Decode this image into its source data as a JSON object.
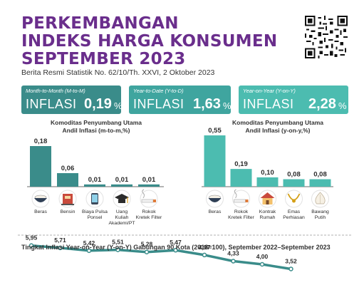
{
  "header": {
    "title_lines": [
      "PERKEMBANGAN",
      "INDEKS HARGA KONSUMEN",
      "SEPTEMBER 2023"
    ],
    "subtitle": "Berita Resmi Statistik No. 62/10/Th. XXVI, 2 Oktober 2023"
  },
  "inflation_boxes": [
    {
      "label": "Month-to-Month (M-to-M)",
      "word": "INFLASI",
      "value": "0,19",
      "unit": "%",
      "color": "#3a8c8a"
    },
    {
      "label": "Year-to-Date (Y-to-D)",
      "word": "INFLASI",
      "value": "1,63",
      "unit": "%",
      "color": "#3fa59f"
    },
    {
      "label": "Year-on-Year (Y-on-Y)",
      "word": "INFLASI",
      "value": "2,28",
      "unit": "%",
      "color": "#4cbcb0"
    }
  ],
  "section_left": {
    "title_line1": "Komoditas Penyumbang Utama",
    "title_line2": "Andil Inflasi (m-to-m,%)"
  },
  "section_right": {
    "title_line1": "Komoditas Penyumbang Utama",
    "title_line2": "Andil Inflasi (y-on-y,%)"
  },
  "footer_title": "Tingkat Inflasi Year-on-Year (Y-on-Y) Gabungan 90 Kota (2018=100), September 2022–September 2023",
  "chart_data": [
    {
      "type": "bar",
      "categories": [
        "Beras",
        "Bensin",
        "Biaya Pulsa Ponsel",
        "Uang Kuliah Akademi/PT",
        "Rokok Kretek Filter"
      ],
      "category_lines": [
        [
          "Beras"
        ],
        [
          "Bensin"
        ],
        [
          "Biaya Pulsa",
          "Ponsel"
        ],
        [
          "Uang",
          "Kuliah",
          "Akademi/PT"
        ],
        [
          "Rokok",
          "Kretek Filter"
        ]
      ],
      "values": [
        0.18,
        0.06,
        0.01,
        0.01,
        0.01
      ],
      "value_labels": [
        "0,18",
        "0,06",
        "0,01",
        "0,01",
        "0,01"
      ],
      "icons": [
        "rice-bowl-icon",
        "fuel-pump-icon",
        "phone-icon",
        "graduation-cap-icon",
        "cigarette-icon"
      ],
      "color": "#3a8c8a",
      "title": "Komoditas Penyumbang Utama Andil Inflasi (m-to-m,%)"
    },
    {
      "type": "bar",
      "categories": [
        "Beras",
        "Rokok Kretek Filter",
        "Kontrak Rumah",
        "Emas Perhiasan",
        "Bawang Putih"
      ],
      "category_lines": [
        [
          "Beras"
        ],
        [
          "Rokok",
          "Kretek Filter"
        ],
        [
          "Kontrak",
          "Rumah"
        ],
        [
          "Emas",
          "Perhiasan"
        ],
        [
          "Bawang",
          "Putih"
        ]
      ],
      "values": [
        0.55,
        0.19,
        0.1,
        0.08,
        0.08
      ],
      "value_labels": [
        "0,55",
        "0,19",
        "0,10",
        "0,08",
        "0,08"
      ],
      "icons": [
        "rice-bowl-icon",
        "cigarette-icon",
        "house-icon",
        "jewelry-icon",
        "garlic-icon"
      ],
      "color": "#4cbcb0",
      "title": "Komoditas Penyumbang Utama Andil Inflasi (y-on-y,%)"
    },
    {
      "type": "line",
      "title": "Tingkat Inflasi Year-on-Year (Y-on-Y) Gabungan 90 Kota (2018=100), September 2022–September 2023",
      "values": [
        5.95,
        5.71,
        5.42,
        5.51,
        5.28,
        5.47,
        4.97,
        4.33,
        4.0,
        3.52
      ],
      "value_labels": [
        "5,95",
        "5,71",
        "5,42",
        "5,51",
        "5,28",
        "5,47",
        "4,97",
        "4,33",
        "4,00",
        "3,52"
      ],
      "color": "#3a8c8a"
    }
  ]
}
